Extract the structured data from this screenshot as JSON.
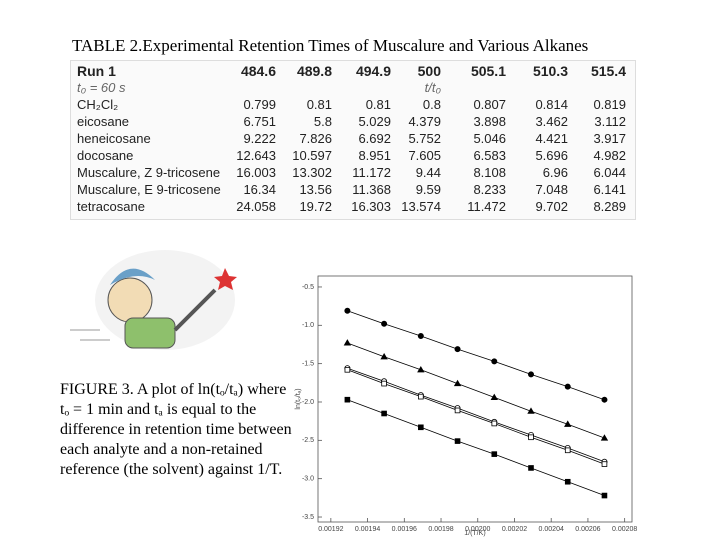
{
  "title": "TABLE 2.Experimental Retention Times of Muscalure and Various Alkanes",
  "table": {
    "header": [
      "Run 1",
      "484.6",
      "489.8",
      "494.9",
      "500",
      "505.1",
      "510.3",
      "515.4"
    ],
    "subheader": [
      "t₀ = 60 s",
      "t/t₀"
    ],
    "rows": [
      [
        "CH₂Cl₂",
        "0.799",
        "0.81",
        "0.81",
        "0.8",
        "0.807",
        "0.814",
        "0.819"
      ],
      [
        "eicosane",
        "6.751",
        "5.8",
        "5.029",
        "4.379",
        "3.898",
        "3.462",
        "3.112"
      ],
      [
        "heneicosane",
        "9.222",
        "7.826",
        "6.692",
        "5.752",
        "5.046",
        "4.421",
        "3.917"
      ],
      [
        "docosane",
        "12.643",
        "10.597",
        "8.951",
        "7.605",
        "6.583",
        "5.696",
        "4.982"
      ],
      [
        "Muscalure, Z 9-tricosene",
        "16.003",
        "13.302",
        "11.172",
        "9.44",
        "8.108",
        "6.96",
        "6.044"
      ],
      [
        "Muscalure, E 9-tricosene",
        "16.34",
        "13.56",
        "11.368",
        "9.59",
        "8.233",
        "7.048",
        "6.141"
      ],
      [
        "tetracosane",
        "24.058",
        "19.72",
        "16.303",
        "13.574",
        "11.472",
        "9.702",
        "8.289"
      ]
    ]
  },
  "caption": "FIGURE 3. A plot of ln(tₒ/tₐ) where tₒ = 1 min and tₐ is equal to the difference in retention time between each analyte and a non-retained reference (the solvent) against 1/T.",
  "chart_data": {
    "type": "line",
    "x_label": "1/(T/K)",
    "y_label": "ln(tₒ/tₐ)",
    "x": [
      0.001929,
      0.001949,
      0.001969,
      0.001989,
      0.002009,
      0.002029,
      0.002049,
      0.002069
    ],
    "series": [
      {
        "color": "#000000",
        "marker": "circle-filled",
        "values": [
          -0.81,
          -0.98,
          -1.14,
          -1.31,
          -1.47,
          -1.64,
          -1.8,
          -1.97
        ]
      },
      {
        "color": "#000000",
        "marker": "triangle-filled",
        "values": [
          -1.23,
          -1.41,
          -1.58,
          -1.76,
          -1.94,
          -2.12,
          -2.29,
          -2.47
        ]
      },
      {
        "color": "#000000",
        "marker": "circle-open",
        "values": [
          -1.56,
          -1.73,
          -1.91,
          -2.08,
          -2.26,
          -2.43,
          -2.6,
          -2.78
        ]
      },
      {
        "color": "#000000",
        "marker": "square-open",
        "values": [
          -1.58,
          -1.76,
          -1.93,
          -2.11,
          -2.28,
          -2.46,
          -2.63,
          -2.81
        ]
      },
      {
        "color": "#000000",
        "marker": "square-filled",
        "values": [
          -1.97,
          -2.15,
          -2.33,
          -2.51,
          -2.68,
          -2.86,
          -3.04,
          -3.22
        ]
      }
    ],
    "xlim": [
      0.001913,
      0.002084
    ],
    "ylim": [
      -3.565,
      -0.357
    ],
    "xticks": [
      0.00192,
      0.00194,
      0.00196,
      0.00198,
      {
        "value": 0.002,
        "label": "0.00200"
      },
      0.00202,
      0.00204,
      0.00206,
      0.00208
    ],
    "yticks": [
      -0.5,
      {
        "value": -1,
        "label": "-1.0"
      },
      -1.5,
      {
        "value": -2,
        "label": "-2.0"
      },
      -2.5,
      {
        "value": -3,
        "label": "-3.0"
      },
      -3.5
    ]
  }
}
